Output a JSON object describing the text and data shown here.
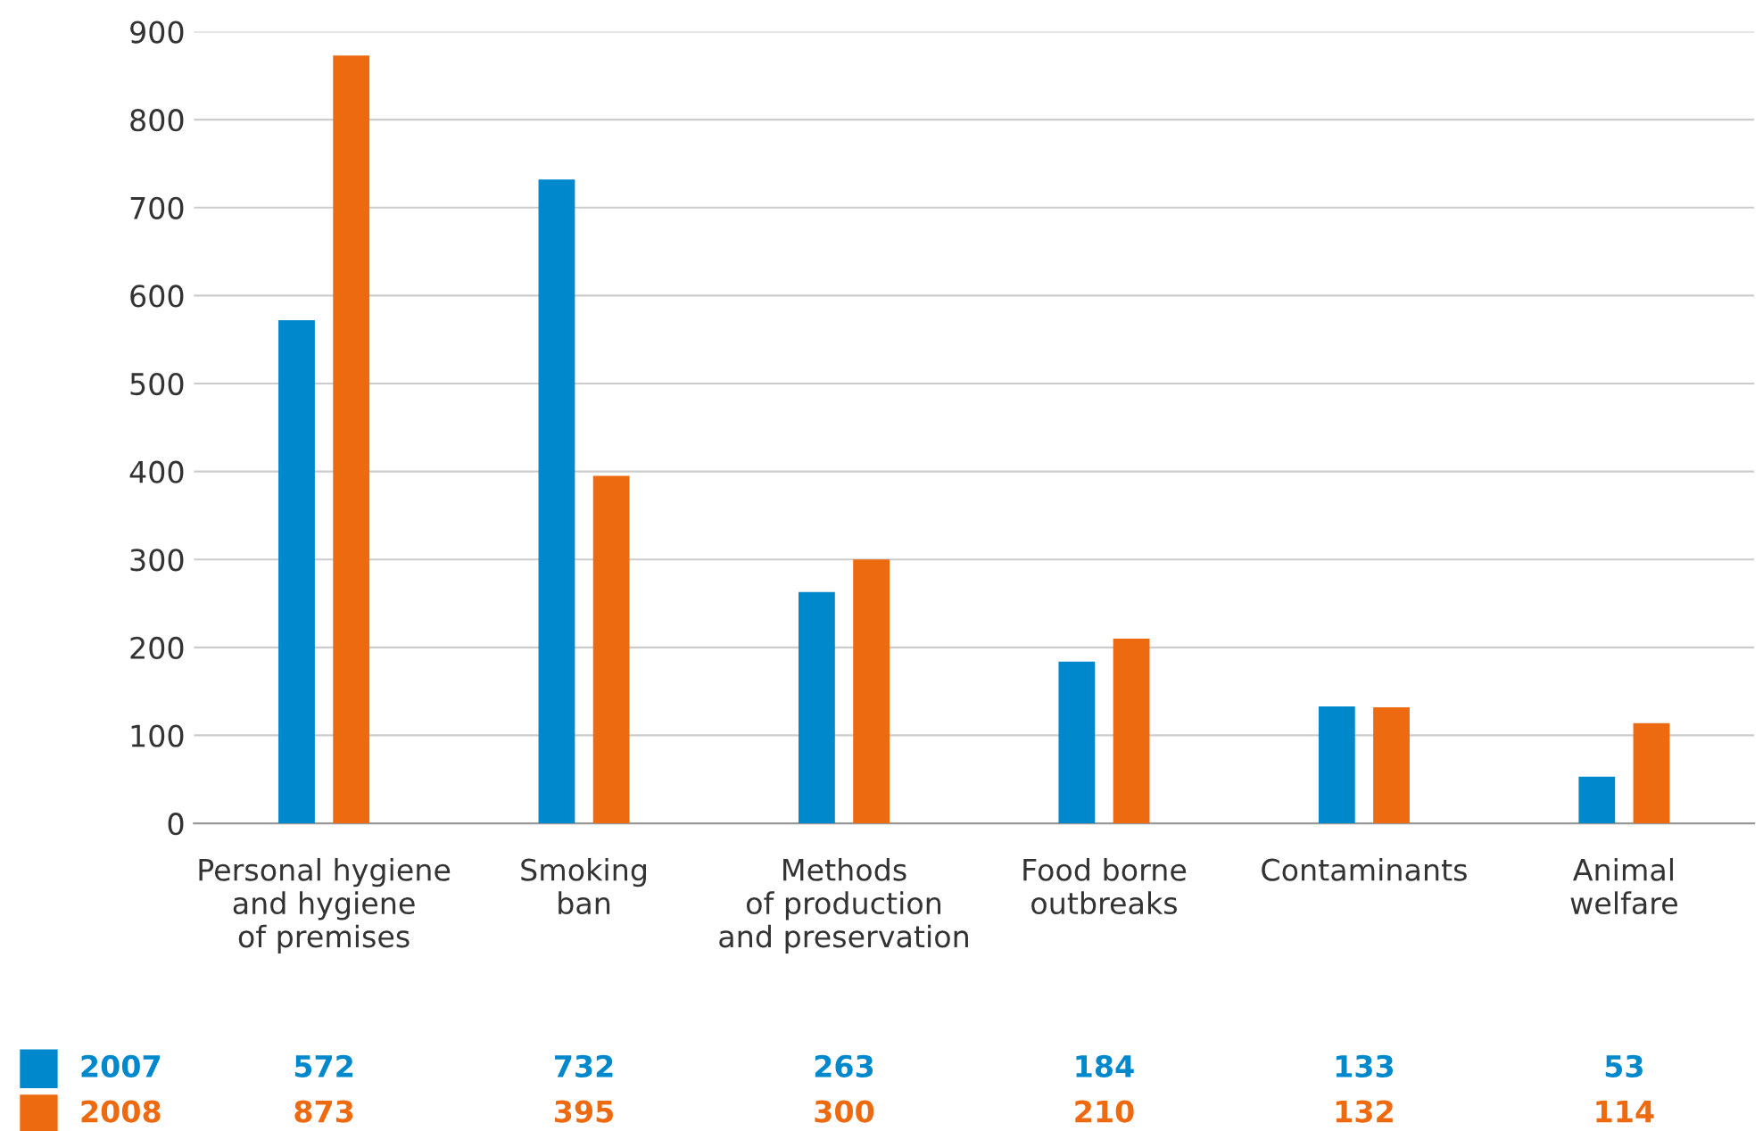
{
  "chart_data": {
    "type": "bar",
    "categories": [
      "Personal hygiene\nand hygiene\nof premises",
      "Smoking\nban",
      "Methods\nof production\nand preservation",
      "Food borne\noutbreaks",
      "Contaminants",
      "Animal\nwelfare"
    ],
    "series": [
      {
        "name": "2007",
        "color": "#0088cc",
        "values": [
          572,
          732,
          263,
          184,
          133,
          53
        ]
      },
      {
        "name": "2008",
        "color": "#ee6a10",
        "values": [
          873,
          395,
          300,
          210,
          132,
          114
        ]
      }
    ],
    "ylim": [
      0,
      900
    ],
    "yticks": [
      0,
      100,
      200,
      300,
      400,
      500,
      600,
      700,
      800,
      900
    ],
    "grid": "y",
    "legend": "bottom left",
    "data_labels": true
  }
}
